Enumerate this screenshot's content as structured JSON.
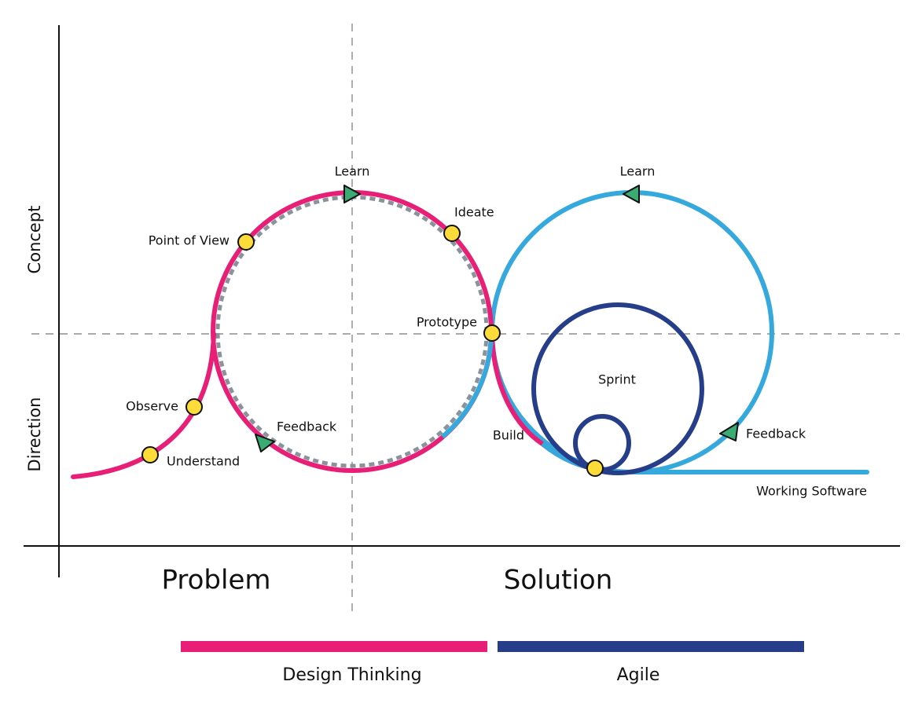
{
  "axes": {
    "y_top": "Concept",
    "y_bottom": "Direction",
    "x_left": "Problem",
    "x_right": "Solution"
  },
  "labels": {
    "learn_1": "Learn",
    "ideate": "Ideate",
    "point_of_view": "Point of View",
    "prototype": "Prototype",
    "observe": "Observe",
    "understand": "Understand",
    "feedback_1": "Feedback",
    "build": "Build",
    "learn_2": "Learn",
    "sprint": "Sprint",
    "feedback_2": "Feedback",
    "working_software": "Working Software"
  },
  "legend": {
    "design_thinking": "Design Thinking",
    "agile": "Agile"
  }
}
